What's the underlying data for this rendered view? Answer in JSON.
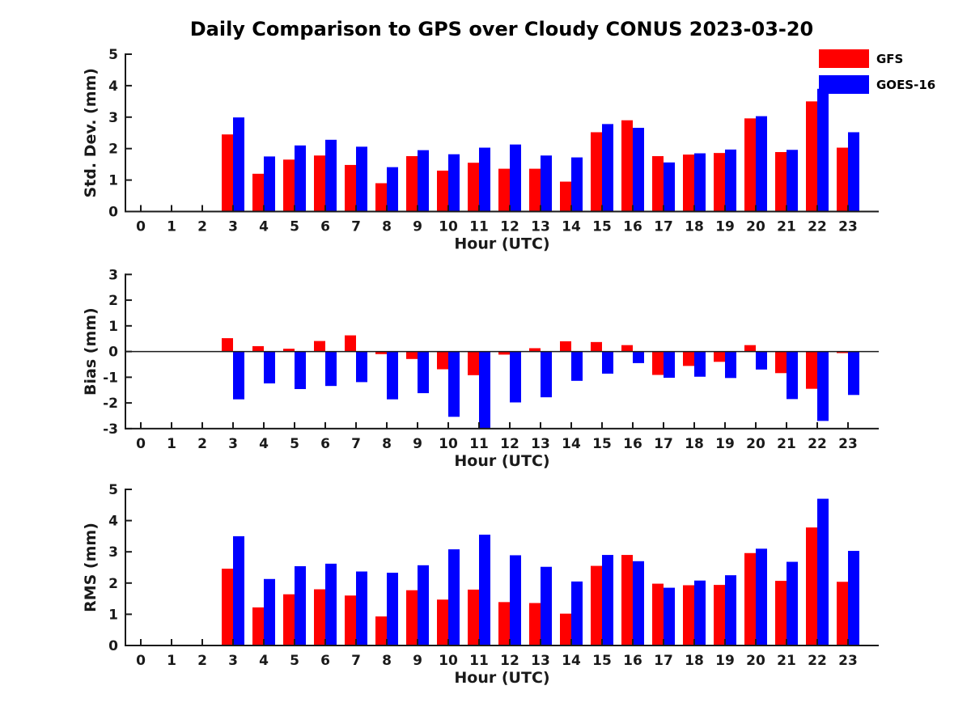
{
  "title": "Daily Comparison to GPS over Cloudy CONUS 2023-03-20",
  "colors": {
    "gfs": "#ff0000",
    "goes16": "#0000ff",
    "axis": "#1a1a1a"
  },
  "legend": {
    "items": [
      {
        "label": "GFS",
        "color": "#ff0000"
      },
      {
        "label": "GOES-16",
        "color": "#0000ff"
      }
    ]
  },
  "chart_data": [
    {
      "type": "bar",
      "ylabel": "Std. Dev. (mm)",
      "xlabel": "Hour (UTC)",
      "ylim": [
        0,
        5
      ],
      "yticks": [
        0,
        1,
        2,
        3,
        4,
        5
      ],
      "grid": false,
      "categories": [
        0,
        1,
        2,
        3,
        4,
        5,
        6,
        7,
        8,
        9,
        10,
        11,
        12,
        13,
        14,
        15,
        16,
        17,
        18,
        19,
        20,
        21,
        22,
        23
      ],
      "series": [
        {
          "name": "GFS",
          "color": "#ff0000",
          "values": [
            null,
            null,
            null,
            2.45,
            1.2,
            1.65,
            1.78,
            1.48,
            0.9,
            1.76,
            1.3,
            1.55,
            1.36,
            1.36,
            0.95,
            2.52,
            2.9,
            1.76,
            1.81,
            1.86,
            2.96,
            1.89,
            3.5,
            2.03
          ]
        },
        {
          "name": "GOES-16",
          "color": "#0000ff",
          "values": [
            null,
            null,
            null,
            2.99,
            1.75,
            2.1,
            2.28,
            2.06,
            1.41,
            1.95,
            1.82,
            2.03,
            2.13,
            1.78,
            1.72,
            2.78,
            2.66,
            1.56,
            1.85,
            1.97,
            3.03,
            1.96,
            3.9,
            2.52
          ]
        }
      ]
    },
    {
      "type": "bar",
      "ylabel": "Bias (mm)",
      "xlabel": "Hour (UTC)",
      "ylim": [
        -3,
        3
      ],
      "yticks": [
        -3,
        -2,
        -1,
        0,
        1,
        2,
        3
      ],
      "zero_line": true,
      "grid": false,
      "categories": [
        0,
        1,
        2,
        3,
        4,
        5,
        6,
        7,
        8,
        9,
        10,
        11,
        12,
        13,
        14,
        15,
        16,
        17,
        18,
        19,
        20,
        21,
        22,
        23
      ],
      "series": [
        {
          "name": "GFS",
          "color": "#ff0000",
          "values": [
            null,
            null,
            null,
            0.52,
            0.21,
            0.11,
            0.41,
            0.63,
            -0.1,
            -0.29,
            -0.69,
            -0.92,
            -0.12,
            0.13,
            0.4,
            0.37,
            0.25,
            -0.91,
            -0.56,
            -0.4,
            0.25,
            -0.84,
            -1.45,
            -0.06
          ]
        },
        {
          "name": "GOES-16",
          "color": "#0000ff",
          "values": [
            null,
            null,
            null,
            -1.86,
            -1.24,
            -1.46,
            -1.34,
            -1.19,
            -1.86,
            -1.62,
            -2.54,
            -2.98,
            -1.98,
            -1.78,
            -1.14,
            -0.86,
            -0.45,
            -1.02,
            -0.98,
            -1.03,
            -0.7,
            -1.85,
            -2.7,
            -1.69
          ]
        }
      ]
    },
    {
      "type": "bar",
      "ylabel": "RMS (mm)",
      "xlabel": "Hour (UTC)",
      "ylim": [
        0,
        5
      ],
      "yticks": [
        0,
        1,
        2,
        3,
        4,
        5
      ],
      "grid": false,
      "categories": [
        0,
        1,
        2,
        3,
        4,
        5,
        6,
        7,
        8,
        9,
        10,
        11,
        12,
        13,
        14,
        15,
        16,
        17,
        18,
        19,
        20,
        21,
        22,
        23
      ],
      "series": [
        {
          "name": "GFS",
          "color": "#ff0000",
          "values": [
            null,
            null,
            null,
            2.46,
            1.22,
            1.64,
            1.8,
            1.6,
            0.93,
            1.77,
            1.47,
            1.79,
            1.39,
            1.36,
            1.02,
            2.55,
            2.9,
            1.98,
            1.93,
            1.94,
            2.96,
            2.07,
            3.78,
            2.04
          ]
        },
        {
          "name": "GOES-16",
          "color": "#0000ff",
          "values": [
            null,
            null,
            null,
            3.5,
            2.13,
            2.54,
            2.62,
            2.37,
            2.33,
            2.57,
            3.08,
            3.55,
            2.89,
            2.52,
            2.05,
            2.9,
            2.7,
            1.85,
            2.08,
            2.25,
            3.1,
            2.68,
            4.7,
            3.03
          ]
        }
      ]
    }
  ]
}
